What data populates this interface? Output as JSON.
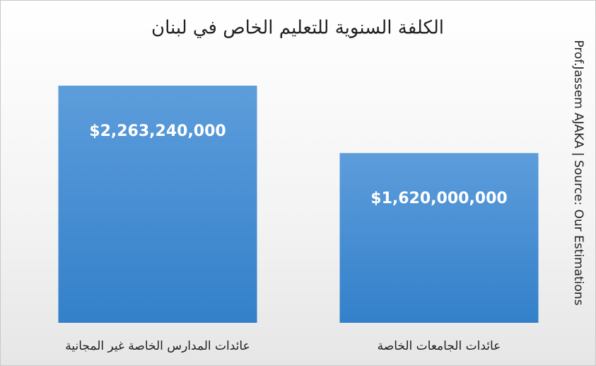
{
  "chart_data": {
    "type": "bar",
    "title": "الكلفة السنوية للتعليم الخاص في لبنان",
    "source": "Prof.Jassem AJAKA | Source: Our Estimations",
    "categories": [
      "عائدات المدارس الخاصة غير المجانية",
      "عائدات الجامعات الخاصة"
    ],
    "values": [
      2263240000,
      1620000000
    ],
    "value_labels": [
      "$2,263,240,000",
      "$1,620,000,000"
    ],
    "color": "#4a8fd2"
  }
}
